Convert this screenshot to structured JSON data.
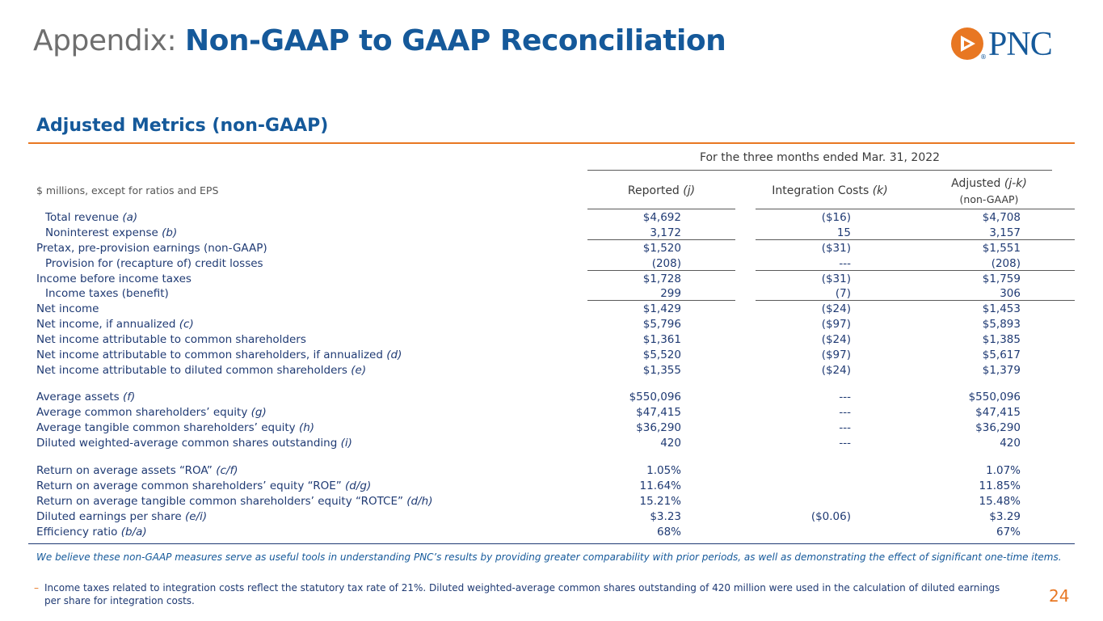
{
  "header": {
    "title_prefix": "Appendix: ",
    "title_main": "Non-GAAP to GAAP Reconciliation",
    "logo_text": "PNC",
    "logo_mark": "®"
  },
  "section_title": "Adjusted Metrics (non-GAAP)",
  "table": {
    "period_header": "For the three months ended Mar. 31, 2022",
    "units_label": "$ millions, except for ratios and EPS",
    "columns": [
      {
        "label": "Reported ",
        "tag": "(j)"
      },
      {
        "label": "Integration Costs ",
        "tag": "(k)"
      },
      {
        "label": "Adjusted ",
        "tag": "(j-k)",
        "sub": "(non-GAAP)"
      }
    ],
    "rows": [
      {
        "label": "Total revenue ",
        "tag": "(a)",
        "v1": "$4,692",
        "v2": "($16)",
        "v3": "$4,708"
      },
      {
        "label": "Noninterest expense ",
        "tag": "(b)",
        "v1": "3,172",
        "v2": "15",
        "v3": "3,157"
      },
      {
        "label": "Pretax, pre-provision earnings (non-GAAP)",
        "tag": "",
        "v1": "$1,520",
        "v2": "($31)",
        "v3": "$1,551"
      },
      {
        "label": "Provision for (recapture of) credit losses",
        "tag": "",
        "v1": "(208)",
        "v2": "---",
        "v3": "(208)"
      },
      {
        "label": "Income before income taxes",
        "tag": "",
        "v1": "$1,728",
        "v2": "($31)",
        "v3": "$1,759"
      },
      {
        "label": "Income taxes (benefit)",
        "tag": "",
        "v1": "299",
        "v2": "(7)",
        "v3": "306"
      },
      {
        "label": "Net income",
        "tag": "",
        "v1": "$1,429",
        "v2": "($24)",
        "v3": "$1,453"
      },
      {
        "label": "Net income, if annualized ",
        "tag": "(c)",
        "v1": "$5,796",
        "v2": "($97)",
        "v3": "$5,893"
      },
      {
        "label": "Net income attributable to common shareholders",
        "tag": "",
        "v1": "$1,361",
        "v2": "($24)",
        "v3": "$1,385"
      },
      {
        "label": "Net income attributable to common shareholders, if annualized ",
        "tag": "(d)",
        "v1": "$5,520",
        "v2": "($97)",
        "v3": "$5,617"
      },
      {
        "label": "Net income attributable to diluted common shareholders ",
        "tag": "(e)",
        "v1": "$1,355",
        "v2": "($24)",
        "v3": "$1,379"
      },
      {
        "label": "Average assets ",
        "tag": "(f)",
        "v1": "$550,096",
        "v2": "---",
        "v3": "$550,096"
      },
      {
        "label": "Average common shareholders’ equity ",
        "tag": "(g)",
        "v1": "$47,415",
        "v2": "---",
        "v3": "$47,415"
      },
      {
        "label": "Average tangible common shareholders’ equity ",
        "tag": "(h)",
        "v1": "$36,290",
        "v2": "---",
        "v3": "$36,290"
      },
      {
        "label": "Diluted weighted-average common shares outstanding ",
        "tag": "(i)",
        "v1": "420",
        "v2": "---",
        "v3": "420"
      },
      {
        "label": "Return on average assets “ROA” ",
        "tag": "(c/f)",
        "v1": "1.05%",
        "v2": "",
        "v3": "1.07%"
      },
      {
        "label": "Return on average common shareholders’ equity “ROE” ",
        "tag": "(d/g)",
        "v1": "11.64%",
        "v2": "",
        "v3": "11.85%"
      },
      {
        "label": "Return on average tangible common shareholders’ equity “ROTCE” ",
        "tag": "(d/h)",
        "v1": "15.21%",
        "v2": "",
        "v3": "15.48%"
      },
      {
        "label": "Diluted earnings per share ",
        "tag": "(e/i)",
        "v1": "$3.23",
        "v2": "($0.06)",
        "v3": "$3.29"
      },
      {
        "label": "Efficiency ratio ",
        "tag": "(b/a)",
        "v1": "68%",
        "v2": "",
        "v3": "67%"
      }
    ]
  },
  "note": "We believe these non-GAAP measures serve as useful tools in understanding PNC’s results by providing greater comparability with prior periods, as well as demonstrating the effect of significant one-time items.",
  "footnote": {
    "bullet": "–",
    "text": "Income taxes related to integration costs reflect the statutory tax rate of 21%. Diluted weighted-average common shares outstanding of 420 million were used in the calculation of diluted earnings per share for integration costs."
  },
  "page_number": "24"
}
